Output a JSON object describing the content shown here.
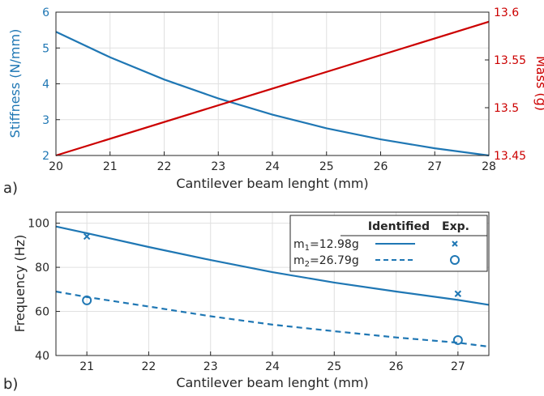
{
  "colors": {
    "blue": "#1f77b4",
    "red": "#cc0000",
    "grid": "#e0e0e0",
    "axis": "#262626"
  },
  "chart_data": [
    {
      "type": "line",
      "panel_label": "a)",
      "xlabel": "Cantilever beam lenght (mm)",
      "ylabel_left": "Stiffness (N/mm)",
      "ylabel_right": "Mass (g)",
      "xlim": [
        20,
        28
      ],
      "ylim_left": [
        2,
        6
      ],
      "ylim_right": [
        13.45,
        13.6
      ],
      "x_ticks": [
        20,
        21,
        22,
        23,
        24,
        25,
        26,
        27,
        28
      ],
      "y_left_ticks": [
        2,
        3,
        4,
        5,
        6
      ],
      "y_right_ticks": [
        "13.45",
        "13.5",
        "13.55",
        "13.6"
      ],
      "grid": true,
      "series": [
        {
          "axis": "left",
          "x": [
            20,
            21,
            22,
            23,
            24,
            25,
            26,
            27,
            28
          ],
          "values": [
            5.45,
            4.74,
            4.12,
            3.59,
            3.14,
            2.76,
            2.45,
            2.2,
            2.0
          ]
        },
        {
          "axis": "right",
          "x": [
            20,
            28
          ],
          "values": [
            13.45,
            13.59
          ]
        }
      ]
    },
    {
      "type": "line",
      "panel_label": "b)",
      "xlabel": "Cantilever beam lenght (mm)",
      "ylabel": "Frequency (Hz)",
      "xlim": [
        20.5,
        27.5
      ],
      "ylim": [
        40,
        105
      ],
      "x_ticks": [
        21,
        22,
        23,
        24,
        25,
        26,
        27
      ],
      "y_ticks": [
        40,
        60,
        80,
        100
      ],
      "grid": true,
      "legend": {
        "position": "top-right",
        "header_identified": "Identified",
        "header_exp": "Exp.",
        "entries": [
          {
            "base": "m",
            "sub": "1",
            "rest": "=12.98g"
          },
          {
            "base": "m",
            "sub": "2",
            "rest": "=26.79g"
          }
        ]
      },
      "series": [
        {
          "style": "solid",
          "x": [
            20.5,
            21,
            22,
            23,
            24,
            25,
            26,
            27,
            27.5
          ],
          "values": [
            98.5,
            95.5,
            89.2,
            83.3,
            77.8,
            73.1,
            69.0,
            65.2,
            63.0
          ]
        },
        {
          "style": "dashed",
          "x": [
            20.5,
            21,
            22,
            23,
            24,
            25,
            26,
            27,
            27.5
          ],
          "values": [
            69.0,
            66.5,
            62.2,
            57.8,
            54.0,
            51.0,
            48.2,
            45.8,
            44.0
          ]
        }
      ],
      "experimental": [
        {
          "marker": "x",
          "x": 21,
          "y": 94
        },
        {
          "marker": "x",
          "x": 27,
          "y": 68
        },
        {
          "marker": "o",
          "x": 21,
          "y": 65
        },
        {
          "marker": "o",
          "x": 27,
          "y": 47
        }
      ]
    }
  ]
}
